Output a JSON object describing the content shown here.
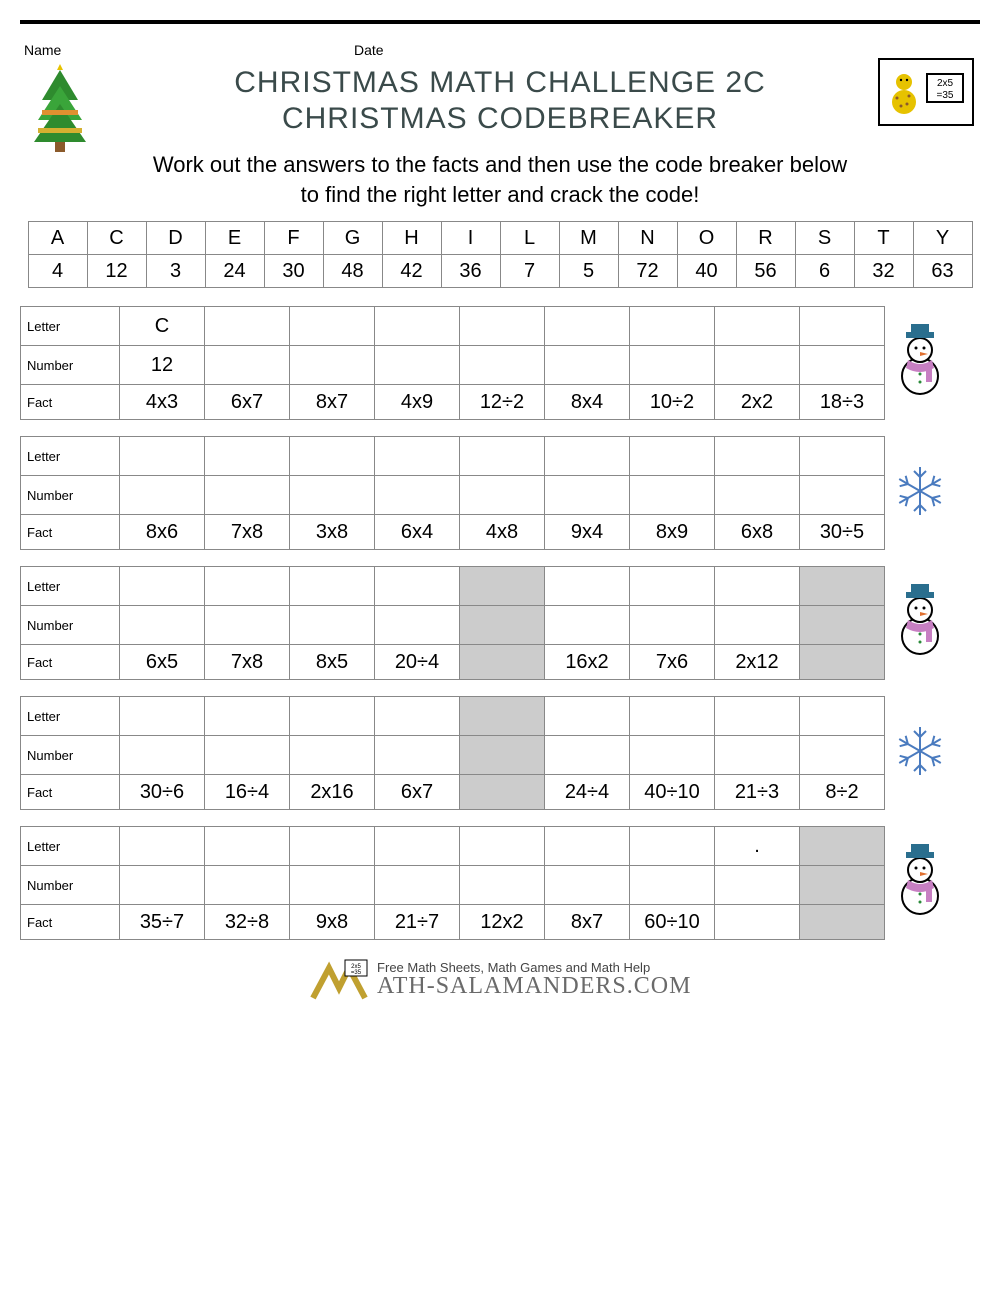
{
  "labels": {
    "name": "Name",
    "date": "Date",
    "letter": "Letter",
    "number": "Number",
    "fact": "Fact"
  },
  "title1": "CHRISTMAS MATH CHALLENGE 2C",
  "title2": "CHRISTMAS CODEBREAKER",
  "intro_l1": "Work out the answers to the facts and then use the code breaker below",
  "intro_l2": "to find the right letter and crack the code!",
  "code_key": {
    "letters": [
      "A",
      "C",
      "D",
      "E",
      "F",
      "G",
      "H",
      "I",
      "L",
      "M",
      "N",
      "O",
      "R",
      "S",
      "T",
      "Y"
    ],
    "numbers": [
      "4",
      "12",
      "3",
      "24",
      "30",
      "48",
      "42",
      "36",
      "7",
      "5",
      "72",
      "40",
      "56",
      "6",
      "32",
      "63"
    ]
  },
  "puzzles": [
    {
      "cols": 9,
      "icon": "snowman",
      "letters": [
        "C",
        "",
        "",
        "",
        "",
        "",
        "",
        "",
        ""
      ],
      "numbers": [
        "12",
        "",
        "",
        "",
        "",
        "",
        "",
        "",
        ""
      ],
      "facts": [
        "4x3",
        "6x7",
        "8x7",
        "4x9",
        "12÷2",
        "8x4",
        "10÷2",
        "2x2",
        "18÷3"
      ],
      "grey": []
    },
    {
      "cols": 9,
      "icon": "snowflake",
      "letters": [
        "",
        "",
        "",
        "",
        "",
        "",
        "",
        "",
        ""
      ],
      "numbers": [
        "",
        "",
        "",
        "",
        "",
        "",
        "",
        "",
        ""
      ],
      "facts": [
        "8x6",
        "7x8",
        "3x8",
        "6x4",
        "4x8",
        "9x4",
        "8x9",
        "6x8",
        "30÷5"
      ],
      "grey": []
    },
    {
      "cols": 9,
      "icon": "snowman",
      "letters": [
        "",
        "",
        "",
        "",
        "",
        "",
        "",
        "",
        ""
      ],
      "numbers": [
        "",
        "",
        "",
        "",
        "",
        "",
        "",
        "",
        ""
      ],
      "facts": [
        "6x5",
        "7x8",
        "8x5",
        "20÷4",
        "",
        "16x2",
        "7x6",
        "2x12",
        ""
      ],
      "grey": [
        4,
        8
      ]
    },
    {
      "cols": 9,
      "icon": "snowflake",
      "letters": [
        "",
        "",
        "",
        "",
        "",
        "",
        "",
        "",
        ""
      ],
      "numbers": [
        "",
        "",
        "",
        "",
        "",
        "",
        "",
        "",
        ""
      ],
      "facts": [
        "30÷6",
        "16÷4",
        "2x16",
        "6x7",
        "",
        "24÷4",
        "40÷10",
        "21÷3",
        "8÷2"
      ],
      "grey": [
        4
      ]
    },
    {
      "cols": 9,
      "icon": "snowman",
      "letters": [
        "",
        "",
        "",
        "",
        "",
        "",
        "",
        ".",
        ""
      ],
      "numbers": [
        "",
        "",
        "",
        "",
        "",
        "",
        "",
        "",
        ""
      ],
      "facts": [
        "35÷7",
        "32÷8",
        "9x8",
        "21÷7",
        "12x2",
        "8x7",
        "60÷10",
        "",
        ""
      ],
      "grey": [
        8
      ]
    }
  ],
  "footer": {
    "tag": "Free Math Sheets, Math Games and Math Help",
    "brand": "ATH-SALAMANDERS.COM"
  },
  "colors": {
    "border": "#888888",
    "grey_cell": "#cccccc",
    "title": "#3a4a4a",
    "text": "#000000",
    "snow_hat": "#2a6e8e",
    "snow_scarf": "#c77fc2",
    "snowflake": "#4a7bbf",
    "tree_green": "#2e8b2e",
    "tree_trunk": "#8b5a2b",
    "star": "#e6c200"
  }
}
